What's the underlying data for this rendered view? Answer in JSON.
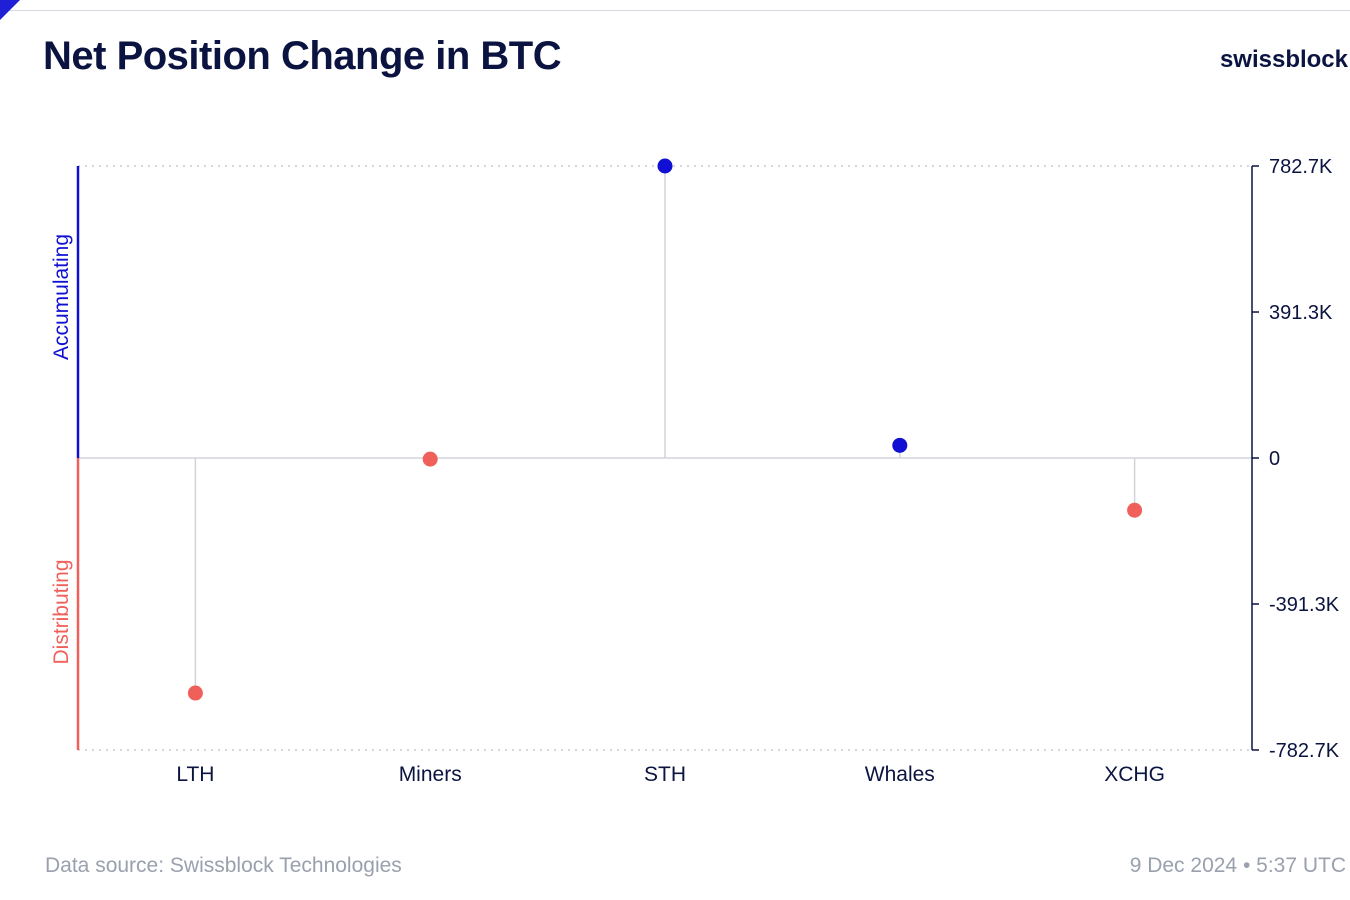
{
  "header": {
    "title": "Net Position Change in BTC",
    "brand": "swissblock"
  },
  "footer": {
    "source": "Data source: Swissblock Technologies",
    "timestamp": "9 Dec 2024 • 5:37 UTC"
  },
  "colors": {
    "accumulate": "#1010d4",
    "distribute": "#f0605a",
    "axis": "#0b1340",
    "grid": "#c9cbd3",
    "stem": "#d2d3d8"
  },
  "chart_data": {
    "type": "scatter",
    "style": "lollipop",
    "categories": [
      "LTH",
      "Miners",
      "STH",
      "Whales",
      "XCHG"
    ],
    "values": [
      -630000,
      -3000,
      782700,
      34000,
      -140000
    ],
    "ylim": [
      -782700,
      782700
    ],
    "yticks": [
      782700,
      391300,
      0,
      -391300,
      -782700
    ],
    "ytick_labels": [
      "782.7K",
      "391.3K",
      "0",
      "-391.3K",
      "-782.7K"
    ],
    "y_axis_side": "right",
    "band_labels": {
      "positive": "Accumulating",
      "negative": "Distributing"
    },
    "grid": "dotted at axis limits"
  }
}
